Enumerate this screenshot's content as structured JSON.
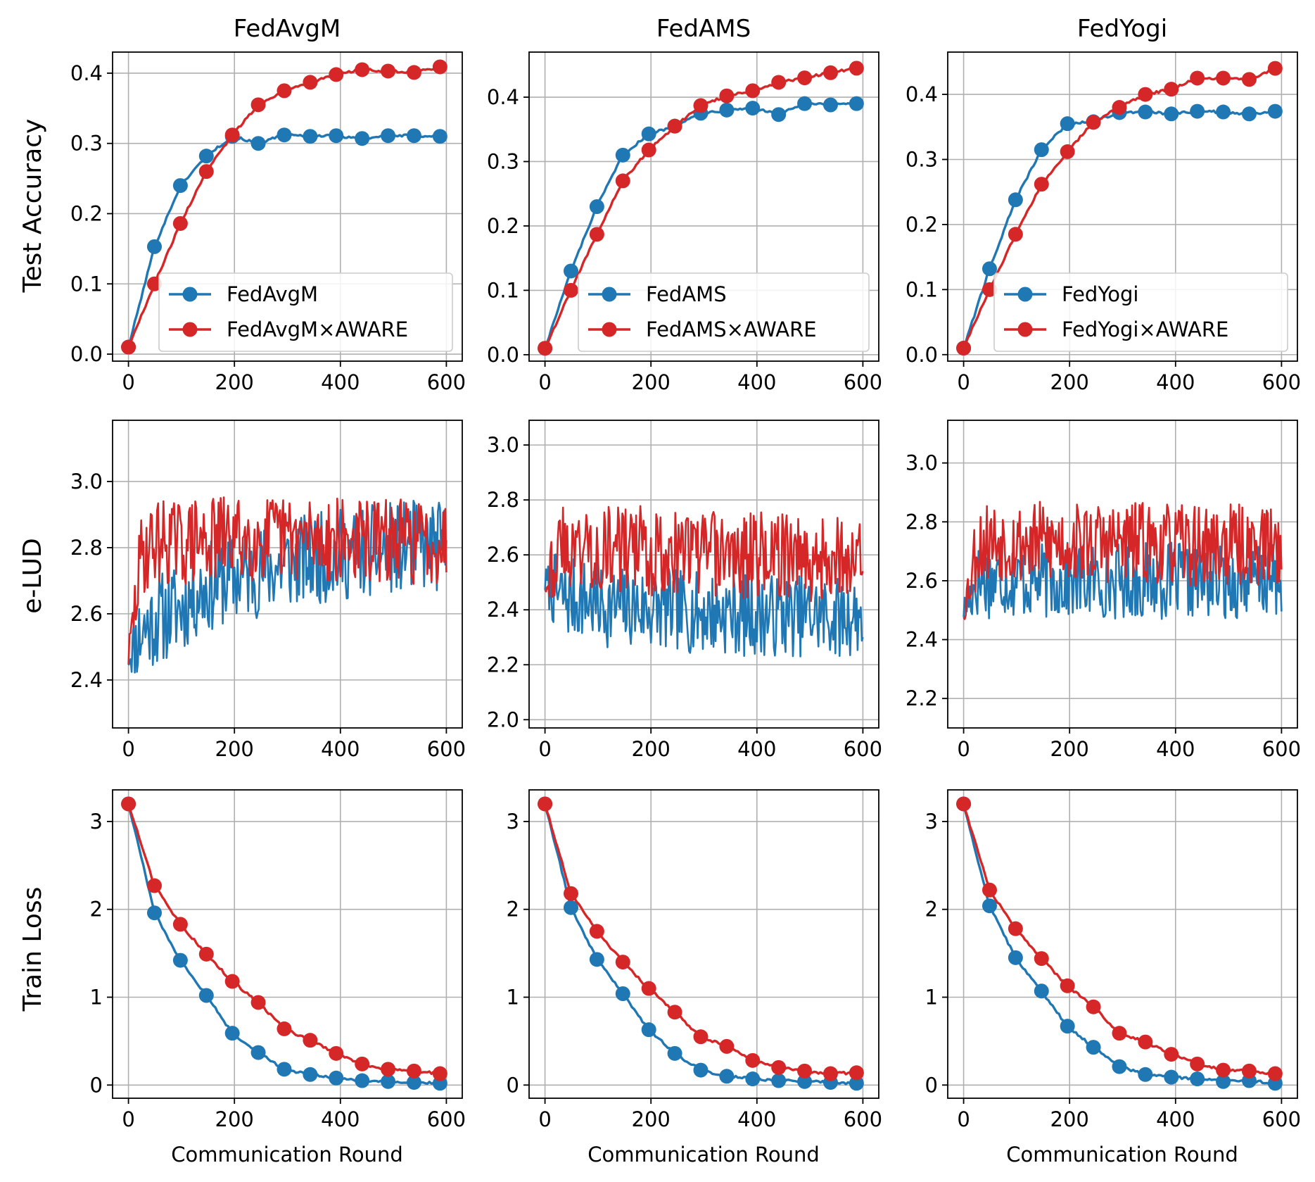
{
  "figure": {
    "column_titles": [
      "FedAvgM",
      "FedAMS",
      "FedYogi"
    ],
    "row_labels": [
      "Test Accuracy",
      "e-LUD",
      "Train Loss"
    ],
    "xlabel": "Communication Round"
  },
  "colors": {
    "baseline": "#1f77b4",
    "aware": "#d62728",
    "grid": "#b0b0b0"
  },
  "chart_data": [
    {
      "type": "line",
      "panel": "accuracy-fedavgm",
      "title": "FedAvgM",
      "ylabel": "Test Accuracy",
      "xlabel": "",
      "xlim": [
        -30,
        630
      ],
      "ylim": [
        -0.01,
        0.43
      ],
      "xticks": [
        0,
        200,
        400,
        600
      ],
      "yticks": [
        0.0,
        0.1,
        0.2,
        0.3,
        0.4
      ],
      "ytick_labels": [
        "0.0",
        "0.1",
        "0.2",
        "0.3",
        "0.4"
      ],
      "legend": "lower-right",
      "x": [
        0,
        49,
        98,
        147,
        196,
        245,
        294,
        343,
        392,
        441,
        490,
        539,
        588
      ],
      "series": [
        {
          "name": "FedAvgM",
          "values": [
            0.01,
            0.153,
            0.24,
            0.282,
            0.31,
            0.3,
            0.312,
            0.31,
            0.311,
            0.307,
            0.311,
            0.311,
            0.31
          ]
        },
        {
          "name": "FedAvgM×AWARE",
          "values": [
            0.01,
            0.1,
            0.186,
            0.26,
            0.312,
            0.355,
            0.375,
            0.387,
            0.398,
            0.405,
            0.403,
            0.401,
            0.409
          ]
        }
      ]
    },
    {
      "type": "line",
      "panel": "accuracy-fedams",
      "title": "FedAMS",
      "ylabel": "",
      "xlabel": "",
      "xlim": [
        -30,
        630
      ],
      "ylim": [
        -0.01,
        0.47
      ],
      "xticks": [
        0,
        200,
        400,
        600
      ],
      "yticks": [
        0.0,
        0.1,
        0.2,
        0.3,
        0.4
      ],
      "ytick_labels": [
        "0.0",
        "0.1",
        "0.2",
        "0.3",
        "0.4"
      ],
      "legend": "lower-right",
      "x": [
        0,
        49,
        98,
        147,
        196,
        245,
        294,
        343,
        392,
        441,
        490,
        539,
        588
      ],
      "series": [
        {
          "name": "FedAMS",
          "values": [
            0.01,
            0.13,
            0.23,
            0.31,
            0.343,
            0.355,
            0.375,
            0.38,
            0.383,
            0.373,
            0.39,
            0.388,
            0.39
          ]
        },
        {
          "name": "FedAMS×AWARE",
          "values": [
            0.01,
            0.1,
            0.187,
            0.27,
            0.318,
            0.355,
            0.387,
            0.402,
            0.41,
            0.423,
            0.43,
            0.438,
            0.445
          ]
        }
      ]
    },
    {
      "type": "line",
      "panel": "accuracy-fedyogi",
      "title": "FedYogi",
      "ylabel": "",
      "xlabel": "",
      "xlim": [
        -30,
        630
      ],
      "ylim": [
        -0.01,
        0.465
      ],
      "xticks": [
        0,
        200,
        400,
        600
      ],
      "yticks": [
        0.0,
        0.1,
        0.2,
        0.3,
        0.4
      ],
      "ytick_labels": [
        "0.0",
        "0.1",
        "0.2",
        "0.3",
        "0.4"
      ],
      "legend": "lower-right",
      "x": [
        0,
        49,
        98,
        147,
        196,
        245,
        294,
        343,
        392,
        441,
        490,
        539,
        588
      ],
      "series": [
        {
          "name": "FedYogi",
          "values": [
            0.01,
            0.132,
            0.238,
            0.315,
            0.355,
            0.358,
            0.372,
            0.373,
            0.37,
            0.374,
            0.373,
            0.37,
            0.374
          ]
        },
        {
          "name": "FedYogi×AWARE",
          "values": [
            0.01,
            0.1,
            0.185,
            0.262,
            0.312,
            0.357,
            0.38,
            0.4,
            0.408,
            0.425,
            0.425,
            0.423,
            0.44
          ]
        }
      ]
    },
    {
      "type": "line",
      "panel": "elud-fedavgm",
      "title": "",
      "ylabel": "e-LUD",
      "xlabel": "",
      "xlim": [
        -30,
        630
      ],
      "ylim": [
        2.255,
        3.185
      ],
      "xticks": [
        0,
        200,
        400,
        600
      ],
      "yticks": [
        2.4,
        2.6,
        2.8,
        3.0
      ],
      "ytick_labels": [
        "2.4",
        "2.6",
        "2.8",
        "3.0"
      ],
      "legend": "none",
      "x": [
        0,
        25,
        50,
        75,
        100,
        125,
        150,
        175,
        200,
        225,
        250,
        275,
        300,
        325,
        350,
        375,
        400,
        425,
        450,
        475,
        500,
        525,
        550,
        575,
        600
      ],
      "series": [
        {
          "name": "FedAvgM",
          "noise": 0.14,
          "seed": 11,
          "values": [
            2.47,
            2.55,
            2.58,
            2.6,
            2.62,
            2.66,
            2.68,
            2.7,
            2.71,
            2.72,
            2.73,
            2.74,
            2.75,
            2.76,
            2.77,
            2.77,
            2.78,
            2.78,
            2.79,
            2.79,
            2.8,
            2.8,
            2.81,
            2.8,
            2.8
          ]
        },
        {
          "name": "FedAvgM×AWARE",
          "noise": 0.13,
          "seed": 29,
          "values": [
            2.47,
            2.78,
            2.82,
            2.82,
            2.81,
            2.82,
            2.82,
            2.83,
            2.83,
            2.83,
            2.83,
            2.83,
            2.83,
            2.83,
            2.83,
            2.83,
            2.82,
            2.82,
            2.82,
            2.82,
            2.82,
            2.82,
            2.82,
            2.82,
            2.82
          ]
        }
      ]
    },
    {
      "type": "line",
      "panel": "elud-fedams",
      "title": "",
      "ylabel": "",
      "xlabel": "",
      "xlim": [
        -30,
        630
      ],
      "ylim": [
        1.97,
        3.09
      ],
      "xticks": [
        0,
        200,
        400,
        600
      ],
      "yticks": [
        2.0,
        2.2,
        2.4,
        2.6,
        2.8,
        3.0
      ],
      "ytick_labels": [
        "2.0",
        "2.2",
        "2.4",
        "2.6",
        "2.8",
        "3.0"
      ],
      "legend": "none",
      "x": [
        0,
        25,
        50,
        75,
        100,
        125,
        150,
        175,
        200,
        225,
        250,
        275,
        300,
        325,
        350,
        375,
        400,
        425,
        450,
        475,
        500,
        525,
        550,
        575,
        600
      ],
      "series": [
        {
          "name": "FedAMS",
          "noise": 0.15,
          "seed": 7,
          "values": [
            2.5,
            2.45,
            2.44,
            2.44,
            2.42,
            2.41,
            2.41,
            2.41,
            2.4,
            2.4,
            2.4,
            2.39,
            2.39,
            2.39,
            2.39,
            2.38,
            2.38,
            2.38,
            2.38,
            2.38,
            2.38,
            2.38,
            2.37,
            2.38,
            2.38
          ]
        },
        {
          "name": "FedAMS×AWARE",
          "noise": 0.16,
          "seed": 43,
          "values": [
            2.5,
            2.62,
            2.63,
            2.63,
            2.62,
            2.62,
            2.62,
            2.62,
            2.61,
            2.61,
            2.61,
            2.61,
            2.61,
            2.6,
            2.6,
            2.6,
            2.6,
            2.6,
            2.6,
            2.6,
            2.59,
            2.59,
            2.59,
            2.59,
            2.59
          ]
        }
      ]
    },
    {
      "type": "line",
      "panel": "elud-fedyogi",
      "title": "",
      "ylabel": "",
      "xlabel": "",
      "xlim": [
        -30,
        630
      ],
      "ylim": [
        2.1,
        3.145
      ],
      "xticks": [
        0,
        200,
        400,
        600
      ],
      "yticks": [
        2.2,
        2.4,
        2.6,
        2.8,
        3.0
      ],
      "ytick_labels": [
        "2.2",
        "2.4",
        "2.6",
        "2.8",
        "3.0"
      ],
      "legend": "none",
      "x": [
        0,
        25,
        50,
        75,
        100,
        125,
        150,
        175,
        200,
        225,
        250,
        275,
        300,
        325,
        350,
        375,
        400,
        425,
        450,
        475,
        500,
        525,
        550,
        575,
        600
      ],
      "series": [
        {
          "name": "FedYogi",
          "noise": 0.13,
          "seed": 17,
          "values": [
            2.5,
            2.6,
            2.6,
            2.61,
            2.6,
            2.6,
            2.6,
            2.6,
            2.6,
            2.6,
            2.6,
            2.6,
            2.6,
            2.6,
            2.6,
            2.6,
            2.6,
            2.6,
            2.6,
            2.6,
            2.6,
            2.6,
            2.6,
            2.6,
            2.6
          ]
        },
        {
          "name": "FedYogi×AWARE",
          "noise": 0.14,
          "seed": 53,
          "values": [
            2.5,
            2.72,
            2.74,
            2.74,
            2.73,
            2.73,
            2.73,
            2.73,
            2.73,
            2.73,
            2.73,
            2.73,
            2.73,
            2.73,
            2.73,
            2.72,
            2.72,
            2.72,
            2.72,
            2.72,
            2.72,
            2.72,
            2.72,
            2.72,
            2.72
          ]
        }
      ]
    },
    {
      "type": "line",
      "panel": "loss-fedavgm",
      "title": "",
      "ylabel": "Train Loss",
      "xlabel": "Communication Round",
      "xlim": [
        -30,
        630
      ],
      "ylim": [
        -0.15,
        3.36
      ],
      "xticks": [
        0,
        200,
        400,
        600
      ],
      "yticks": [
        0,
        1,
        2,
        3
      ],
      "ytick_labels": [
        "0",
        "1",
        "2",
        "3"
      ],
      "legend": "none",
      "x": [
        0,
        49,
        98,
        147,
        196,
        245,
        294,
        343,
        392,
        441,
        490,
        539,
        588
      ],
      "series": [
        {
          "name": "FedAvgM",
          "values": [
            3.2,
            1.96,
            1.42,
            1.02,
            0.59,
            0.37,
            0.18,
            0.12,
            0.08,
            0.05,
            0.04,
            0.03,
            0.02
          ]
        },
        {
          "name": "FedAvgM×AWARE",
          "values": [
            3.2,
            2.27,
            1.83,
            1.49,
            1.18,
            0.94,
            0.64,
            0.51,
            0.36,
            0.24,
            0.18,
            0.16,
            0.13
          ]
        }
      ]
    },
    {
      "type": "line",
      "panel": "loss-fedams",
      "title": "",
      "ylabel": "",
      "xlabel": "Communication Round",
      "xlim": [
        -30,
        630
      ],
      "ylim": [
        -0.15,
        3.36
      ],
      "xticks": [
        0,
        200,
        400,
        600
      ],
      "yticks": [
        0,
        1,
        2,
        3
      ],
      "ytick_labels": [
        "0",
        "1",
        "2",
        "3"
      ],
      "legend": "none",
      "x": [
        0,
        49,
        98,
        147,
        196,
        245,
        294,
        343,
        392,
        441,
        490,
        539,
        588
      ],
      "series": [
        {
          "name": "FedAMS",
          "values": [
            3.2,
            2.02,
            1.43,
            1.04,
            0.63,
            0.36,
            0.17,
            0.1,
            0.07,
            0.05,
            0.04,
            0.03,
            0.02
          ]
        },
        {
          "name": "FedAMS×AWARE",
          "values": [
            3.2,
            2.18,
            1.75,
            1.4,
            1.1,
            0.83,
            0.55,
            0.44,
            0.28,
            0.2,
            0.16,
            0.13,
            0.14
          ]
        }
      ]
    },
    {
      "type": "line",
      "panel": "loss-fedyogi",
      "title": "",
      "ylabel": "",
      "xlabel": "Communication Round",
      "xlim": [
        -30,
        630
      ],
      "ylim": [
        -0.15,
        3.36
      ],
      "xticks": [
        0,
        200,
        400,
        600
      ],
      "yticks": [
        0,
        1,
        2,
        3
      ],
      "ytick_labels": [
        "0",
        "1",
        "2",
        "3"
      ],
      "legend": "none",
      "x": [
        0,
        49,
        98,
        147,
        196,
        245,
        294,
        343,
        392,
        441,
        490,
        539,
        588
      ],
      "series": [
        {
          "name": "FedYogi",
          "values": [
            3.2,
            2.04,
            1.45,
            1.07,
            0.67,
            0.43,
            0.21,
            0.12,
            0.09,
            0.07,
            0.04,
            0.05,
            0.02
          ]
        },
        {
          "name": "FedYogi×AWARE",
          "values": [
            3.2,
            2.22,
            1.78,
            1.44,
            1.13,
            0.89,
            0.59,
            0.49,
            0.35,
            0.24,
            0.17,
            0.16,
            0.13
          ]
        }
      ]
    }
  ]
}
